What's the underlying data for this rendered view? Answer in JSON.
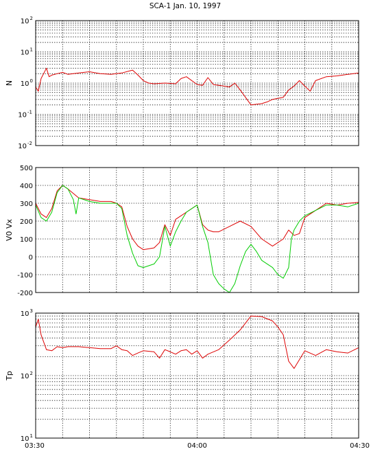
{
  "title": "SCA-1 Jan. 10, 1997",
  "chart_data": [
    {
      "type": "line",
      "ylabel": "N",
      "yscale": "log",
      "ylim": [
        0.01,
        100
      ],
      "ytick_labels": [
        {
          "base": "10",
          "exp": "2"
        },
        {
          "base": "10",
          "exp": "1"
        },
        {
          "base": "10",
          "exp": "0"
        },
        {
          "base": "10",
          "exp": "-1"
        },
        {
          "base": "10",
          "exp": "-2"
        }
      ],
      "xlim_minutes": [
        0,
        60
      ],
      "grid": true,
      "series": [
        {
          "color": "#dd0000",
          "x": [
            0,
            0.5,
            1,
            2,
            2.5,
            3,
            4,
            5,
            6,
            8,
            10,
            12,
            14,
            16,
            18,
            19,
            20,
            21,
            22,
            24,
            26,
            27,
            28,
            30,
            31,
            32,
            33,
            34,
            35,
            36,
            37,
            38,
            40,
            42,
            43,
            44,
            46,
            47,
            48,
            49,
            50,
            51,
            52,
            54,
            56,
            58,
            60
          ],
          "y": [
            0.75,
            0.55,
            1.4,
            3.0,
            1.6,
            1.8,
            2.0,
            2.2,
            1.9,
            2.1,
            2.3,
            2.0,
            1.9,
            2.1,
            2.6,
            1.8,
            1.2,
            1.0,
            0.95,
            1.0,
            0.95,
            1.4,
            1.6,
            0.9,
            0.85,
            1.5,
            0.9,
            0.85,
            0.8,
            0.75,
            1.0,
            0.6,
            0.2,
            0.22,
            0.25,
            0.3,
            0.35,
            0.6,
            0.8,
            1.2,
            0.8,
            0.55,
            1.2,
            1.6,
            1.7,
            1.9,
            2.1
          ]
        }
      ]
    },
    {
      "type": "line",
      "ylabel": "V0 Vx",
      "ylim": [
        -200,
        500
      ],
      "ytick_labels": [
        "500",
        "400",
        "300",
        "200",
        "100",
        "0",
        "-100",
        "-200"
      ],
      "xlim_minutes": [
        0,
        60
      ],
      "grid": true,
      "series": [
        {
          "color": "#dd0000",
          "x": [
            0,
            1,
            2,
            3,
            4,
            5,
            6,
            8,
            10,
            12,
            14,
            15,
            16,
            17,
            18,
            19,
            20,
            22,
            23,
            24,
            25,
            26,
            27,
            28,
            30,
            31,
            32,
            33,
            34,
            36,
            38,
            40,
            42,
            44,
            46,
            47,
            48,
            49,
            50,
            52,
            54,
            56,
            58,
            60
          ],
          "y": [
            300,
            240,
            220,
            270,
            370,
            400,
            380,
            330,
            320,
            310,
            310,
            300,
            280,
            170,
            100,
            60,
            40,
            50,
            80,
            180,
            120,
            210,
            230,
            250,
            290,
            180,
            150,
            140,
            140,
            170,
            200,
            170,
            100,
            60,
            100,
            150,
            120,
            130,
            220,
            260,
            300,
            290,
            300,
            305
          ]
        },
        {
          "color": "#00cc00",
          "x": [
            0,
            1,
            2,
            3,
            4,
            5,
            6,
            7,
            7.5,
            8,
            10,
            12,
            14,
            15,
            16,
            17,
            18,
            19,
            20,
            22,
            23,
            24,
            25,
            26,
            27,
            28,
            30,
            31,
            32,
            33,
            34,
            35,
            36,
            37,
            38,
            39,
            40,
            41,
            42,
            43,
            44,
            45,
            46,
            47,
            47.5,
            48,
            49,
            50,
            52,
            54,
            56,
            58,
            60
          ],
          "y": [
            290,
            220,
            200,
            250,
            360,
            400,
            380,
            320,
            240,
            330,
            310,
            300,
            300,
            300,
            270,
            120,
            20,
            -50,
            -60,
            -40,
            0,
            170,
            60,
            140,
            200,
            250,
            290,
            170,
            80,
            -100,
            -150,
            -180,
            -200,
            -150,
            -50,
            30,
            70,
            30,
            -20,
            -40,
            -60,
            -100,
            -120,
            -60,
            100,
            150,
            200,
            230,
            260,
            290,
            290,
            280,
            300
          ]
        }
      ]
    },
    {
      "type": "line",
      "ylabel": "Tp",
      "yscale": "log",
      "ylim": [
        10,
        1000
      ],
      "ytick_labels": [
        {
          "base": "10",
          "exp": "3"
        },
        {
          "base": "10",
          "exp": "2"
        },
        {
          "base": "10",
          "exp": "1"
        }
      ],
      "xtick_labels": [
        "03:30",
        "04:00",
        "04:30"
      ],
      "xlim_minutes": [
        0,
        60
      ],
      "grid": true,
      "series": [
        {
          "color": "#dd0000",
          "x": [
            0,
            0.5,
            1,
            2,
            3,
            4,
            5,
            6,
            8,
            10,
            12,
            14,
            15,
            16,
            17,
            18,
            19,
            20,
            22,
            23,
            24,
            25,
            26,
            27,
            28,
            29,
            30,
            31,
            32,
            34,
            36,
            38,
            40,
            42,
            44,
            45,
            46,
            47,
            48,
            50,
            52,
            54,
            56,
            58,
            60
          ],
          "y": [
            600,
            800,
            450,
            260,
            250,
            290,
            280,
            290,
            290,
            280,
            270,
            270,
            300,
            260,
            250,
            210,
            230,
            250,
            240,
            190,
            260,
            240,
            220,
            250,
            260,
            220,
            250,
            190,
            220,
            260,
            370,
            540,
            900,
            880,
            750,
            600,
            450,
            170,
            130,
            250,
            210,
            260,
            240,
            230,
            280
          ]
        }
      ]
    }
  ]
}
